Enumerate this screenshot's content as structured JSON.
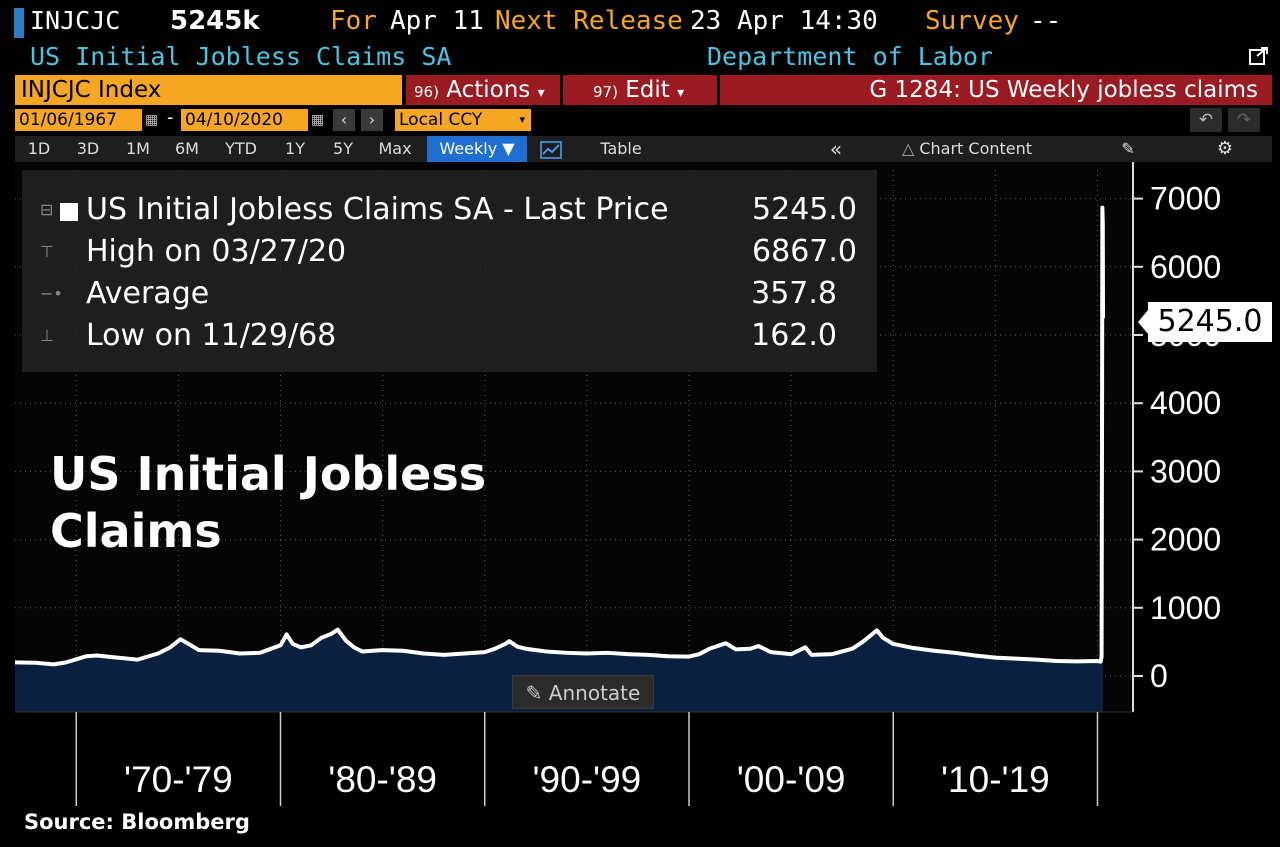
{
  "header": {
    "ticker": "INJCJC",
    "last_value": "5245k",
    "for_label": "For",
    "for_value": "Apr 11",
    "next_release_label": "Next Release",
    "next_release_value": "23 Apr 14:30",
    "survey_label": "Survey",
    "survey_value": "--",
    "subtitle": "US Initial Jobless Claims SA",
    "source_dept": "Department of Labor"
  },
  "function_bar": {
    "index": "INJCJC Index",
    "actions_num": "96)",
    "actions_label": "Actions",
    "edit_num": "97)",
    "edit_label": "Edit",
    "chart_title": "G 1284: US Weekly jobless claims"
  },
  "date_bar": {
    "start_date": "01/06/1967",
    "end_date": "04/10/2020",
    "dash": "-",
    "currency": "Local CCY"
  },
  "toolbar": {
    "periods": [
      "1D",
      "3D",
      "1M",
      "6M",
      "YTD",
      "1Y",
      "5Y",
      "Max"
    ],
    "frequency": "Weekly",
    "table_label": "Table",
    "chart_content_label": "Chart Content"
  },
  "legend": {
    "series_label": "US Initial Jobless Claims SA - Last Price",
    "last_price": "5245.0",
    "high_label": "High on 03/27/20",
    "high_value": "6867.0",
    "average_label": "Average",
    "average_value": "357.8",
    "low_label": "Low on 11/29/68",
    "low_value": "162.0"
  },
  "overlay_title": "US Initial Jobless Claims",
  "annotate_label": "Annotate",
  "last_price_badge": "5245.0",
  "source": "Source: Bloomberg",
  "colors": {
    "accent_orange": "#f5a623",
    "header_cyan": "#4cc3e0",
    "button_red": "#9b1b22",
    "area_fill": "#0b1f3f",
    "line": "#ffffff"
  },
  "chart_data": {
    "type": "area",
    "title": "",
    "xlabel": "",
    "ylabel": "",
    "ylim": [
      -500,
      7500
    ],
    "yticks": [
      0,
      1000,
      2000,
      3000,
      4000,
      5000,
      6000,
      7000
    ],
    "xtick_labels": [
      "'70-'79",
      "'80-'89",
      "'90-'99",
      "'00-'09",
      "'10-'19"
    ],
    "grid": true,
    "series": [
      {
        "x": [
          1967.0,
          1968.0,
          1968.9,
          1969.5,
          1970.5,
          1971.0,
          1972.0,
          1973.0,
          1974.0,
          1974.6,
          1975.1,
          1975.5,
          1976.0,
          1977.0,
          1978.0,
          1979.0,
          1980.0,
          1980.3,
          1980.6,
          1981.0,
          1981.5,
          1982.0,
          1982.5,
          1982.8,
          1983.2,
          1983.6,
          1984.0,
          1985.0,
          1986.0,
          1987.0,
          1988.0,
          1989.0,
          1990.0,
          1990.5,
          1991.0,
          1991.2,
          1991.6,
          1992.0,
          1992.5,
          1993.0,
          1994.0,
          1995.0,
          1996.0,
          1997.0,
          1998.0,
          1999.0,
          2000.0,
          2000.5,
          2001.0,
          2001.5,
          2001.8,
          2002.3,
          2003.0,
          2003.4,
          2004.0,
          2005.0,
          2005.7,
          2006.0,
          2007.0,
          2008.0,
          2008.5,
          2009.0,
          2009.2,
          2009.5,
          2010.0,
          2011.0,
          2012.0,
          2013.0,
          2014.0,
          2015.0,
          2016.0,
          2017.0,
          2018.0,
          2019.0,
          2020.0,
          2020.15,
          2020.2,
          2020.22,
          2020.24,
          2020.26,
          2020.27
        ],
        "values": [
          200,
          195,
          170,
          200,
          290,
          300,
          270,
          240,
          330,
          420,
          540,
          470,
          380,
          370,
          330,
          340,
          450,
          610,
          470,
          420,
          450,
          560,
          620,
          680,
          520,
          420,
          360,
          380,
          370,
          330,
          310,
          330,
          350,
          400,
          470,
          510,
          430,
          400,
          380,
          360,
          340,
          330,
          340,
          320,
          310,
          290,
          285,
          320,
          400,
          450,
          480,
          390,
          400,
          440,
          350,
          320,
          420,
          310,
          320,
          400,
          500,
          620,
          670,
          560,
          470,
          410,
          370,
          340,
          300,
          270,
          255,
          240,
          220,
          215,
          220,
          211,
          282,
          3307,
          6867,
          6615,
          5245
        ]
      }
    ]
  }
}
